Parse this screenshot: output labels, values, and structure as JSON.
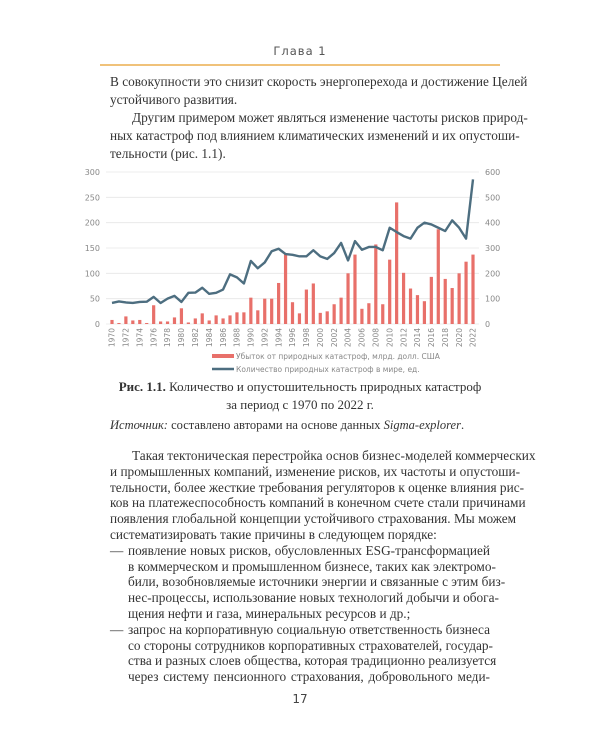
{
  "header": {
    "title": "Глава 1"
  },
  "intro": {
    "p1": [
      "В совокупности это снизит скорость энергоперехода и достижение Целей",
      "устойчивого развития."
    ],
    "p2": [
      "Другим примером может являться изменение частоты рисков природ-",
      "ных катастроф под влиянием климатических изменений и их опустоши-",
      "тельности (рис. 1.1)."
    ]
  },
  "chart_data": {
    "type": "bar+line",
    "categories": [
      1970,
      1971,
      1972,
      1973,
      1974,
      1975,
      1976,
      1977,
      1978,
      1979,
      1980,
      1981,
      1982,
      1983,
      1984,
      1985,
      1986,
      1987,
      1988,
      1989,
      1990,
      1991,
      1992,
      1993,
      1994,
      1995,
      1996,
      1997,
      1998,
      1999,
      2000,
      2001,
      2002,
      2003,
      2004,
      2005,
      2006,
      2007,
      2008,
      2009,
      2010,
      2011,
      2012,
      2013,
      2014,
      2015,
      2016,
      2017,
      2018,
      2019,
      2020,
      2021,
      2022
    ],
    "x_tick_labels": [
      "1970",
      "1972",
      "1974",
      "1976",
      "1978",
      "1980",
      "1982",
      "1984",
      "1986",
      "1988",
      "1990",
      "1992",
      "1994",
      "1996",
      "1998",
      "2000",
      "2002",
      "2004",
      "2006",
      "2008",
      "2010",
      "2012",
      "2014",
      "2016",
      "2018",
      "2020",
      "2022"
    ],
    "series": [
      {
        "name": "Убыток от природных катастроф, млрд. долл. США",
        "type": "bar",
        "axis": "left",
        "color": "#e8706a",
        "values": [
          8,
          2,
          15,
          7,
          8,
          2,
          37,
          5,
          5,
          13,
          31,
          3,
          11,
          21,
          7,
          17,
          11,
          17,
          23,
          23,
          52,
          27,
          50,
          50,
          81,
          137,
          43,
          21,
          68,
          80,
          22,
          25,
          39,
          52,
          100,
          137,
          30,
          41,
          157,
          39,
          127,
          240,
          101,
          70,
          57,
          45,
          93,
          187,
          89,
          71,
          100,
          123,
          137
        ]
      },
      {
        "name": "Количество природных катастроф в мире, ед.",
        "type": "line",
        "axis": "right",
        "color": "#4d6e80",
        "values": [
          83,
          89,
          85,
          83,
          87,
          88,
          107,
          83,
          100,
          111,
          87,
          123,
          124,
          143,
          119,
          123,
          136,
          196,
          184,
          160,
          249,
          220,
          243,
          287,
          297,
          276,
          273,
          267,
          267,
          291,
          267,
          257,
          280,
          320,
          251,
          327,
          293,
          304,
          304,
          291,
          380,
          363,
          347,
          337,
          380,
          400,
          393,
          380,
          367,
          409,
          380,
          337,
          571
        ]
      }
    ],
    "y_left": {
      "range": [
        0,
        300
      ],
      "ticks": [
        "0",
        "50",
        "100",
        "150",
        "200",
        "250",
        "300"
      ]
    },
    "y_right": {
      "range": [
        0,
        600
      ],
      "ticks": [
        "0",
        "100",
        "200",
        "300",
        "400",
        "500",
        "600"
      ]
    },
    "grid": true,
    "legend": "bottom"
  },
  "caption": {
    "label": "Рис. 1.1.",
    "line1": " Количество и опустошительность природных катастроф",
    "line2": "за период с 1970 по 2022 г."
  },
  "source": {
    "label": "Источник:",
    "text": " составлено авторами на основе данных ",
    "name": "Sigma-explorer",
    "end": "."
  },
  "body": {
    "p": [
      "Такая тектоническая перестройка основ бизнес-моделей коммерческих",
      "и промышленных компаний, изменение рисков, их частоты и опустоши-",
      "тельности, более жесткие требования регуляторов к оценке влияния рис-",
      "ков на платежеспособность компаний в конечном счете стали причинами",
      "появления глобальной концепции устойчивого страхования. Мы можем",
      "систематизировать такие причины в следующем порядке:"
    ],
    "dash": "—",
    "bullets": [
      [
        "появление новых рисков, обусловленных ESG-трансформацией",
        "в коммерческом и промышленном бизнесе, таких как электромо-",
        "били, возобновляемые источники энергии и связанные с этим биз-",
        "нес-процессы, использование новых технологий добычи и обога-",
        "щения нефти и газа, минеральных ресурсов и др.;"
      ],
      [
        "запрос на корпоративную социальную ответственность бизнеса",
        "со стороны сотрудников корпоративных страхователей, государ-",
        "ства и разных слоев общества, которая традиционно реализуется",
        "через систему пенсионного страхования, добровольного меди-"
      ]
    ]
  },
  "page_number": "17"
}
